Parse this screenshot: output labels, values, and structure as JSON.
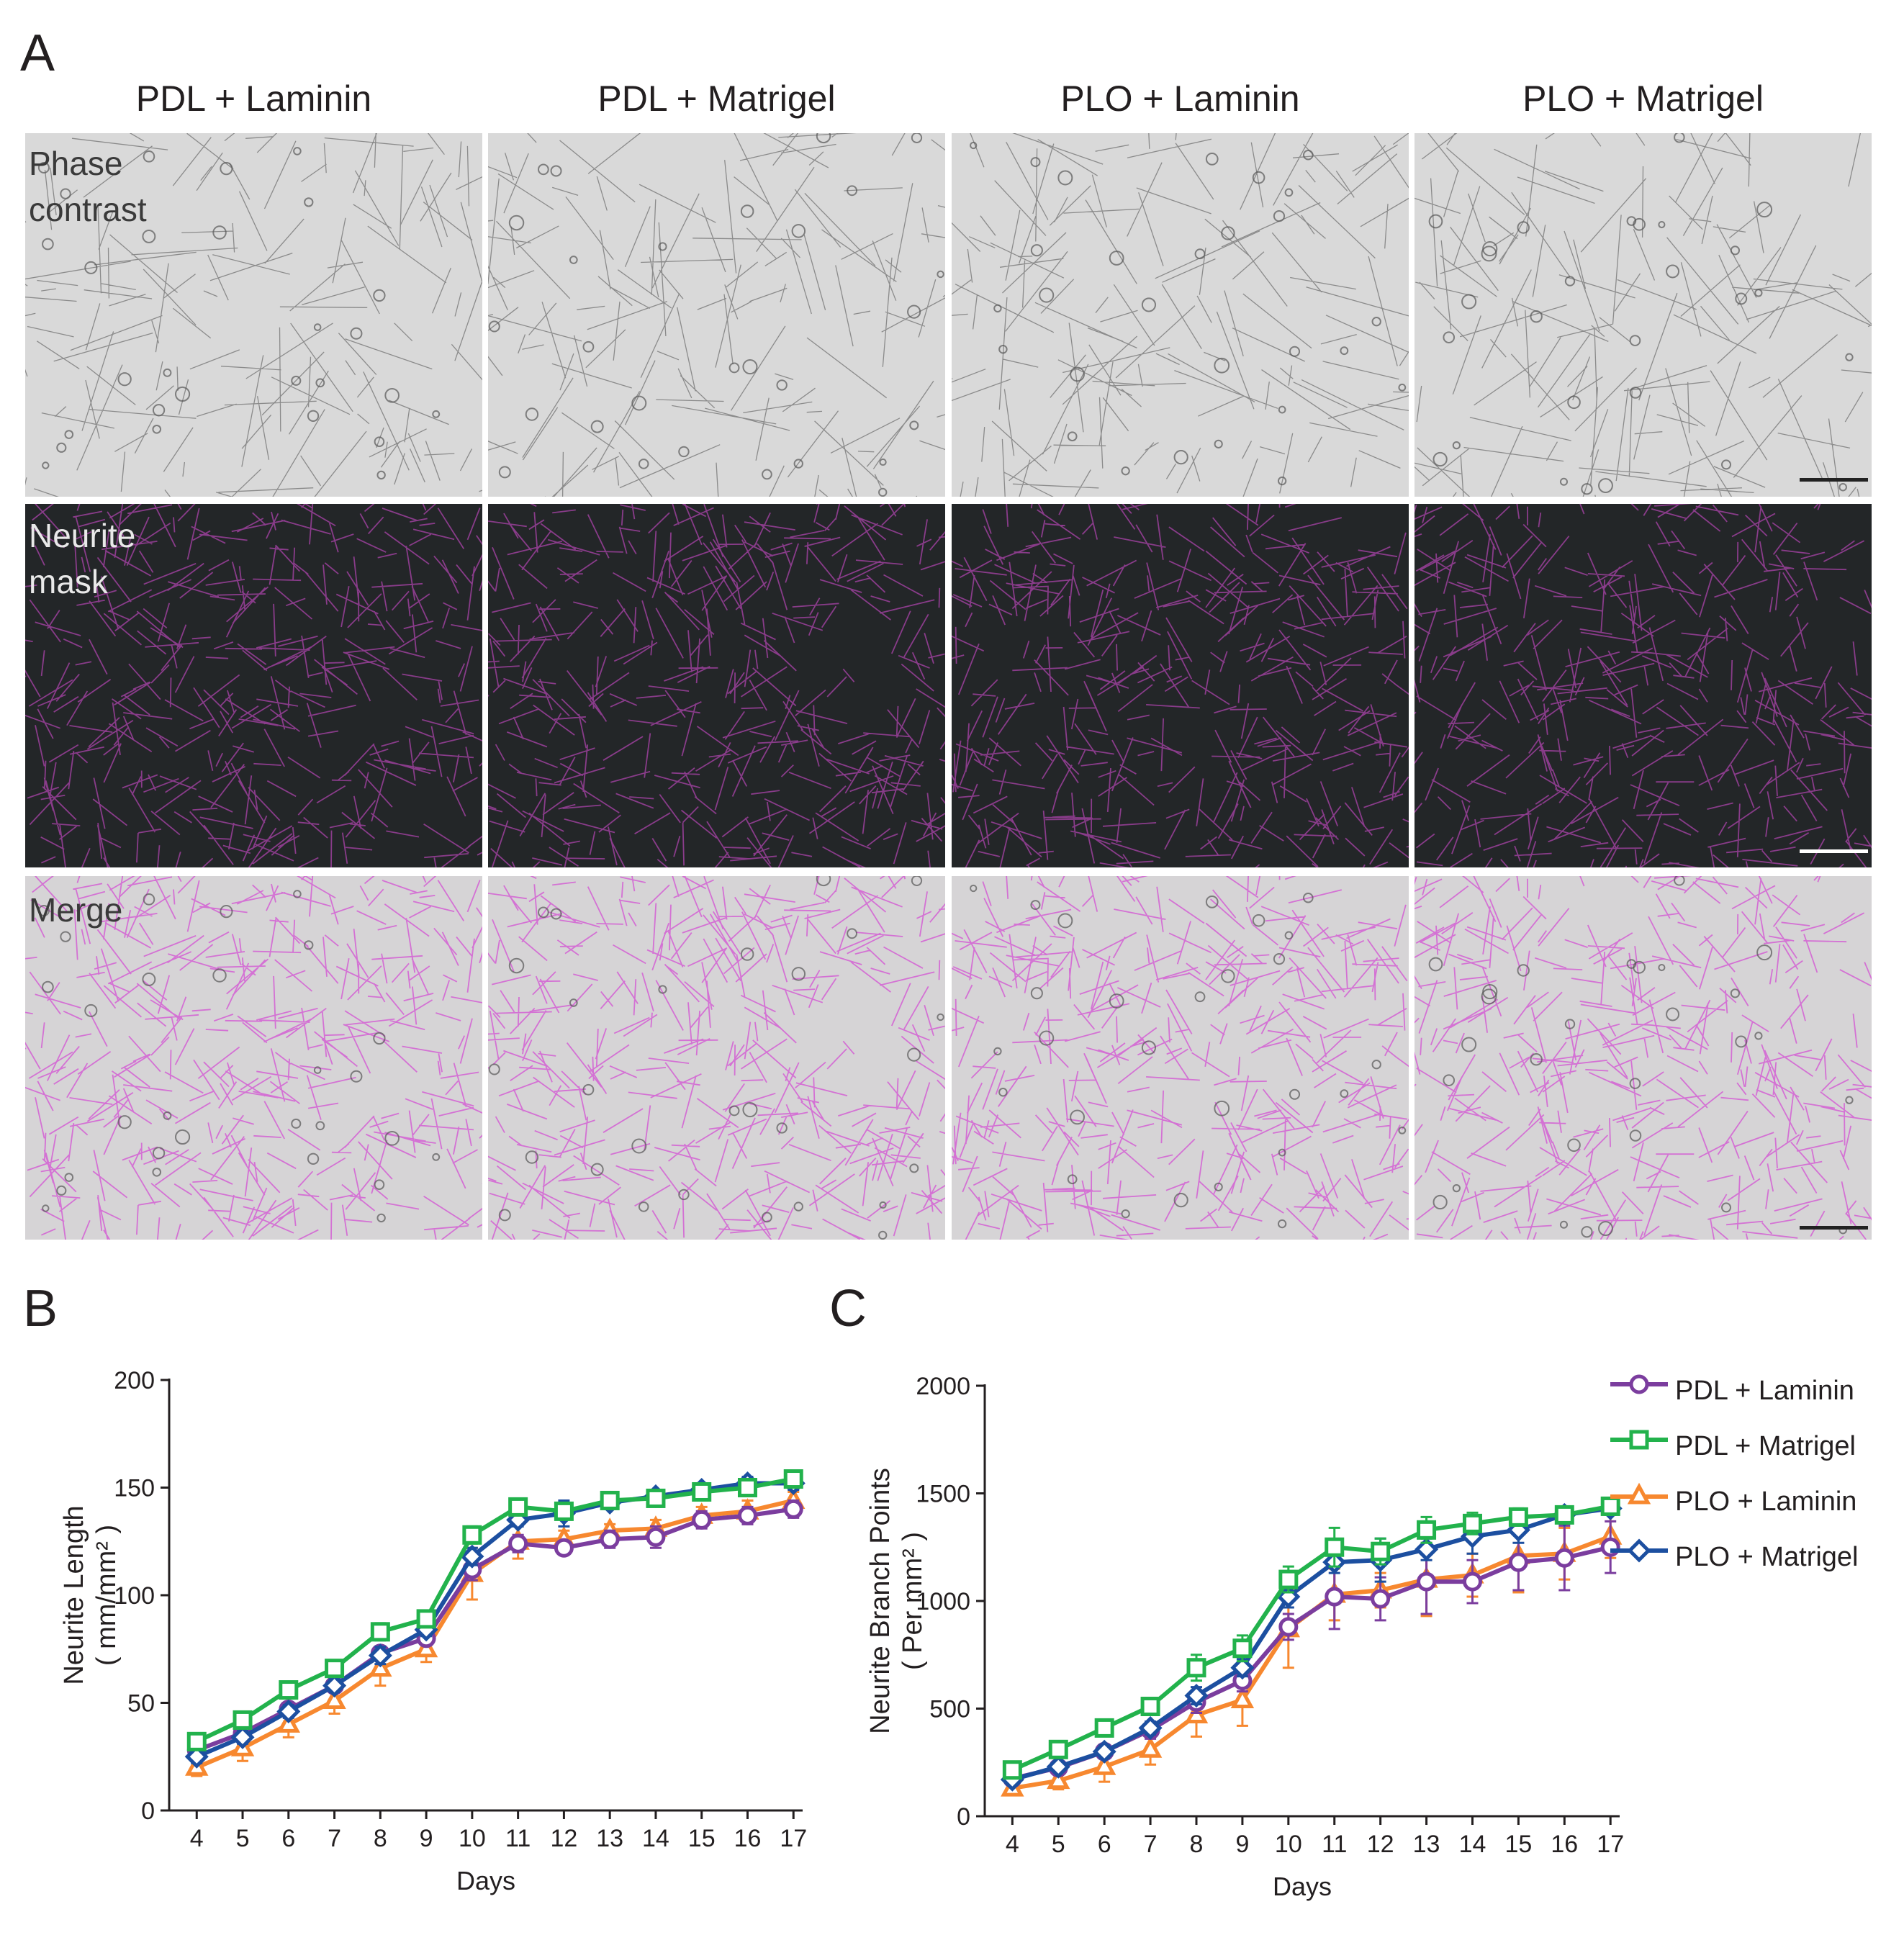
{
  "panel_a": {
    "letter": "A",
    "columns": [
      "PDL + Laminin",
      "PDL + Matrigel",
      "PLO + Laminin",
      "PLO + Matrigel"
    ],
    "rows": [
      "Phase\ncontrast",
      "Neurite\nmask",
      "Merge"
    ]
  },
  "panel_b_letter": "B",
  "panel_c_letter": "C",
  "colors": {
    "PDL + Laminin": "#7b3d9e",
    "PDL + Matrigel": "#22b24c",
    "PLO + Laminin": "#f7882f",
    "PLO + Matrigel": "#1c4fa0",
    "mask_neurite": "#8f3d8f",
    "merge_neurite": "#d46bd4"
  },
  "legend": [
    {
      "name": "PDL + Laminin",
      "marker": "circle"
    },
    {
      "name": "PDL + Matrigel",
      "marker": "square"
    },
    {
      "name": "PLO + Laminin",
      "marker": "triangle"
    },
    {
      "name": "PLO + Matrigel",
      "marker": "diamond"
    }
  ],
  "chart_data": [
    {
      "type": "line",
      "xlabel": "Days",
      "ylabel": "Neurite Length",
      "ylabel_unit": "( mm/mm² )",
      "x": [
        4,
        5,
        6,
        7,
        8,
        9,
        10,
        11,
        12,
        13,
        14,
        15,
        16,
        17
      ],
      "ylim": [
        0,
        200
      ],
      "yticks": [
        0,
        50,
        100,
        150,
        200
      ],
      "series": [
        {
          "name": "PDL + Laminin",
          "values": [
            28,
            36,
            47,
            58,
            73,
            80,
            112,
            124,
            122,
            126,
            127,
            135,
            137,
            140
          ],
          "errors": [
            3,
            3,
            3,
            3,
            3,
            3,
            5,
            4,
            3,
            4,
            5,
            4,
            4,
            4
          ]
        },
        {
          "name": "PDL + Matrigel",
          "values": [
            32,
            42,
            56,
            66,
            83,
            89,
            128,
            141,
            139,
            144,
            145,
            148,
            150,
            154
          ],
          "errors": [
            2,
            2,
            3,
            3,
            4,
            3,
            4,
            3,
            3,
            3,
            3,
            3,
            3,
            2
          ]
        },
        {
          "name": "PLO + Laminin",
          "values": [
            20,
            29,
            40,
            51,
            66,
            75,
            110,
            125,
            126,
            130,
            131,
            137,
            139,
            144
          ],
          "errors": [
            4,
            6,
            6,
            6,
            8,
            6,
            12,
            8,
            4,
            3,
            4,
            4,
            5,
            4
          ]
        },
        {
          "name": "PLO + Matrigel",
          "values": [
            25,
            34,
            46,
            58,
            72,
            84,
            118,
            135,
            138,
            143,
            146,
            149,
            152,
            152
          ],
          "errors": [
            3,
            3,
            3,
            3,
            4,
            3,
            4,
            3,
            6,
            3,
            3,
            3,
            3,
            3
          ]
        }
      ]
    },
    {
      "type": "line",
      "xlabel": "Days",
      "ylabel": "Neurite Branch Points",
      "ylabel_unit": "( Per mm² )",
      "x": [
        4,
        5,
        6,
        7,
        8,
        9,
        10,
        11,
        12,
        13,
        14,
        15,
        16,
        17
      ],
      "ylim": [
        0,
        2000
      ],
      "yticks": [
        0,
        500,
        1000,
        1500,
        2000
      ],
      "series": [
        {
          "name": "PDL + Laminin",
          "values": [
            175,
            225,
            300,
            400,
            530,
            630,
            880,
            1020,
            1010,
            1090,
            1090,
            1180,
            1200,
            1250
          ],
          "errors": [
            20,
            20,
            30,
            40,
            50,
            50,
            60,
            150,
            100,
            150,
            100,
            130,
            150,
            120
          ]
        },
        {
          "name": "PDL + Matrigel",
          "values": [
            215,
            310,
            410,
            510,
            690,
            780,
            1100,
            1250,
            1230,
            1330,
            1360,
            1390,
            1400,
            1440
          ],
          "errors": [
            20,
            30,
            30,
            40,
            60,
            60,
            60,
            90,
            60,
            60,
            50,
            40,
            40,
            40
          ]
        },
        {
          "name": "PLO + Laminin",
          "values": [
            130,
            165,
            230,
            310,
            470,
            540,
            870,
            1030,
            1050,
            1100,
            1120,
            1210,
            1220,
            1300
          ],
          "errors": [
            30,
            40,
            70,
            70,
            100,
            120,
            180,
            120,
            80,
            170,
            100,
            170,
            120,
            100
          ]
        },
        {
          "name": "PLO + Matrigel",
          "values": [
            170,
            230,
            300,
            410,
            560,
            690,
            1020,
            1180,
            1190,
            1240,
            1300,
            1330,
            1400,
            1430
          ],
          "errors": [
            20,
            20,
            30,
            30,
            40,
            40,
            50,
            50,
            100,
            50,
            80,
            60,
            40,
            30
          ]
        }
      ]
    }
  ]
}
